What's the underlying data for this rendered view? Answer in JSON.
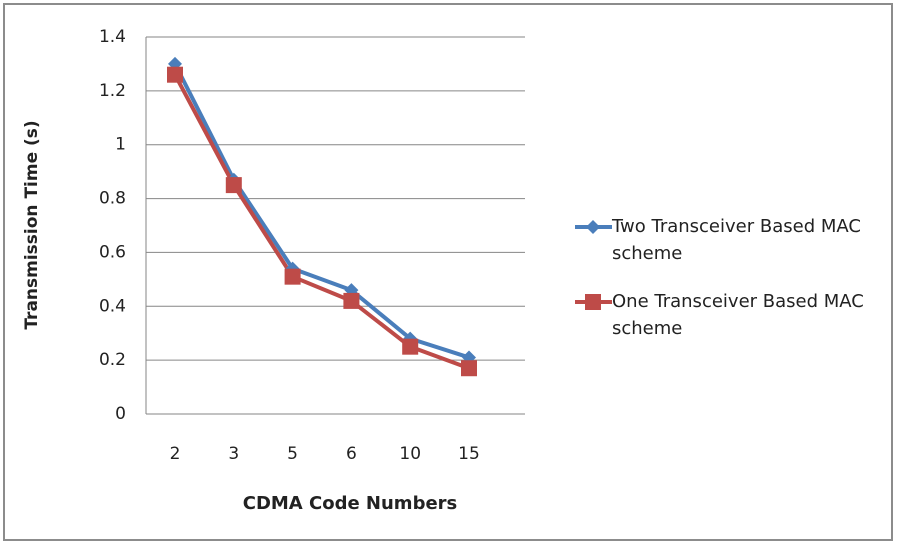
{
  "chart_data": {
    "type": "line",
    "x_label": "CDMA Code Numbers",
    "y_label": "Transmission Time (s)",
    "categories": [
      "2",
      "3",
      "5",
      "6",
      "10",
      "15"
    ],
    "series": [
      {
        "name": "Two Transceiver Based MAC scheme",
        "color": "#4a7ebb",
        "marker": "diamond",
        "values": [
          1.3,
          0.87,
          0.54,
          0.46,
          0.28,
          0.21
        ]
      },
      {
        "name": "One Transceiver Based MAC scheme",
        "color": "#be4b48",
        "marker": "square",
        "values": [
          1.26,
          0.85,
          0.51,
          0.42,
          0.25,
          0.17
        ]
      }
    ],
    "ylim": [
      0,
      1.4
    ],
    "yticks": [
      0,
      0.2,
      0.4,
      0.6,
      0.8,
      1,
      1.2,
      1.4
    ],
    "grid": true,
    "legend": "right"
  }
}
